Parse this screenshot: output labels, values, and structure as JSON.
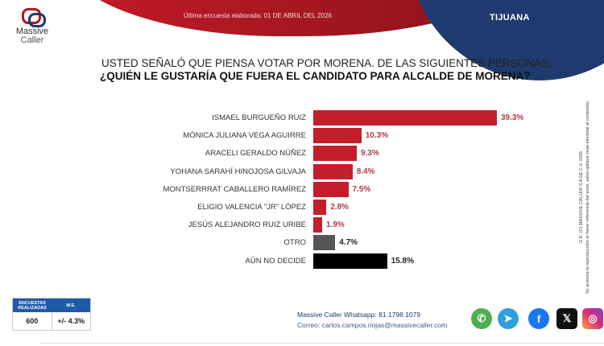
{
  "header": {
    "date_text": "Última encuesta elaborada: 01 DE ABRIL DEL 2026",
    "city": "TIJUANA"
  },
  "logo": {
    "line1": "Massive",
    "line2": "Caller"
  },
  "question": {
    "line1": "USTED SEÑALÓ QUE PIENSA VOTAR POR MORENA. DE LAS SIGUIENTES PERSONAS,",
    "line2": "¿QUIÉN LE GUSTARÍA QUE FUERA EL CANDIDATO PARA ALCALDE DE MORENA?"
  },
  "colors": {
    "red": "#c41e2a",
    "gray": "#555555",
    "black": "#000000",
    "red_label": "#b03a45",
    "dark_label": "#222222",
    "navy": "#1f3a6e"
  },
  "chart_data": {
    "type": "bar",
    "orientation": "horizontal",
    "title": "¿QUIÉN LE GUSTARÍA QUE FUERA EL CANDIDATO PARA ALCALDE DE MORENA?",
    "xlabel": "",
    "ylabel": "",
    "xlim": [
      0,
      40
    ],
    "grid": false,
    "categories": [
      "ISMAEL BURGUEÑO RUIZ",
      "MÓNICA JULIANA VEGA AGUIRRE",
      "ARACELI GERALDO NÚÑEZ",
      "YOHANA SARAHÍ HINOJOSA GILVAJA",
      "MONTSERRRAT CABALLERO RAMÍREZ",
      "ELIGIO VALENCIA \"JR\" LÓPEZ",
      "JESÚS ALEJANDRO RUIZ URIBE",
      "OTRO",
      "AÚN NO DECIDE"
    ],
    "values": [
      39.3,
      10.3,
      9.3,
      8.4,
      7.5,
      2.8,
      1.9,
      4.7,
      15.8
    ],
    "labels": [
      "39.3%",
      "10.3%",
      "9.3%",
      "8.4%",
      "7.5%",
      "2.8%",
      "1.9%",
      "4.7%",
      "15.8%"
    ],
    "bar_colors": [
      "red",
      "red",
      "red",
      "red",
      "red",
      "red",
      "red",
      "gray",
      "black"
    ]
  },
  "side_note": {
    "line1": "D.R. (C) MASSIVE CALLER S.A DE C.V. 2026",
    "line2": "Se autoriza la reproducción al hacer referencia del autor, salvo aplique veda electoral al contenido."
  },
  "stats": {
    "head1": "ENCUESTAS REALIZADAS",
    "head2": "M.E.",
    "val1": "600",
    "val2": "+/- 4.3%"
  },
  "contact": {
    "whatsapp": "Massive Caller Whatsapp: 81 1798 1079",
    "email": "Correo: carlos.campos.riojas@massivecaller.com"
  },
  "social": [
    {
      "name": "whatsapp-icon",
      "glyph": "✆",
      "color": "#4caf50"
    },
    {
      "name": "telegram-icon",
      "glyph": "➤",
      "color": "#2f9fd9"
    },
    {
      "name": "facebook-icon",
      "glyph": "f",
      "color": "#1877f2"
    },
    {
      "name": "x-icon",
      "glyph": "𝕏",
      "color": "#111111"
    },
    {
      "name": "instagram-icon",
      "glyph": "◎",
      "color": "#d6307a"
    }
  ]
}
